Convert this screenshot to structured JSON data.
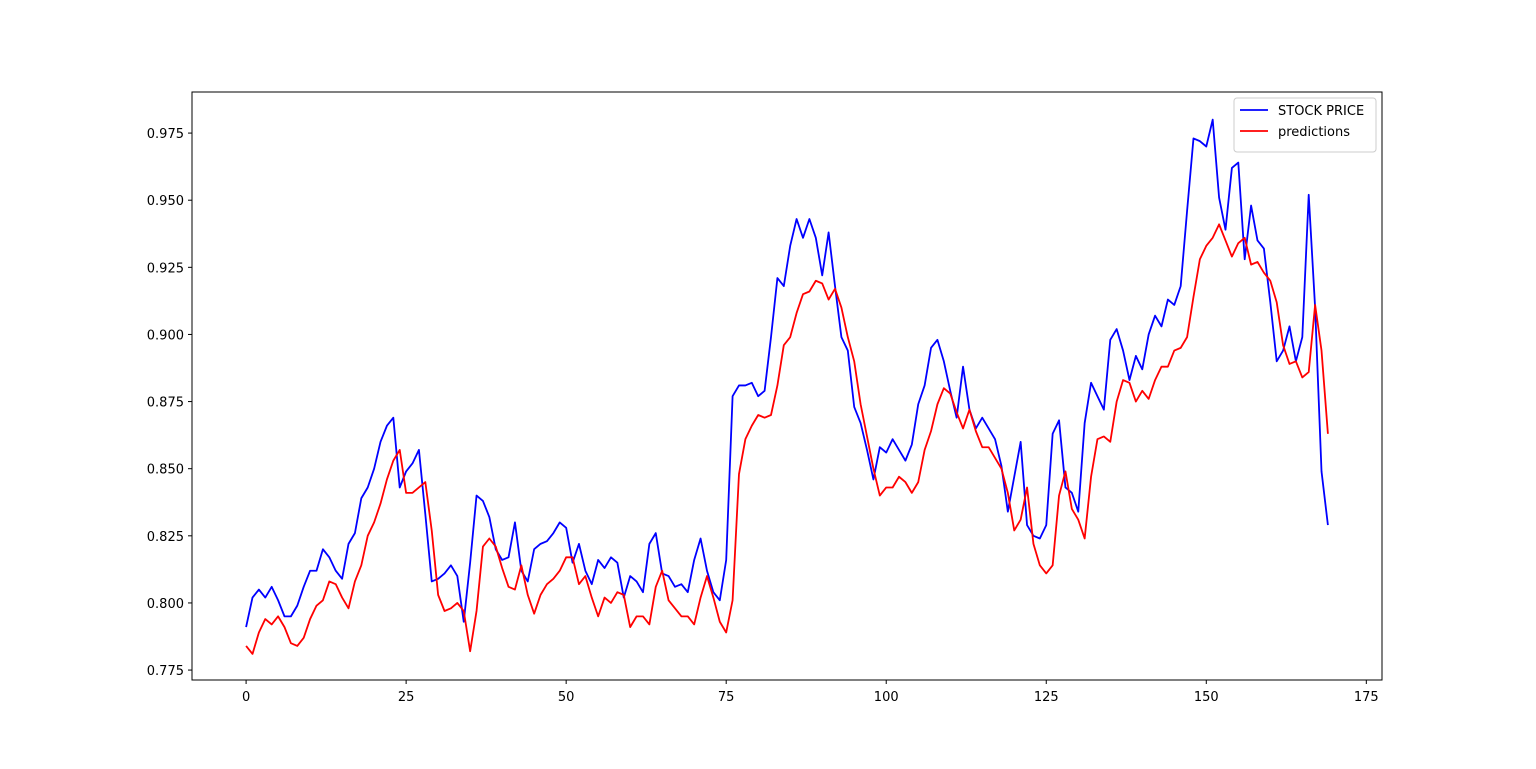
{
  "chart_data": {
    "type": "line",
    "x": [
      0,
      1,
      2,
      3,
      4,
      5,
      6,
      7,
      8,
      9,
      10,
      11,
      12,
      13,
      14,
      15,
      16,
      17,
      18,
      19,
      20,
      21,
      22,
      23,
      24,
      25,
      26,
      27,
      28,
      29,
      30,
      31,
      32,
      33,
      34,
      35,
      36,
      37,
      38,
      39,
      40,
      41,
      42,
      43,
      44,
      45,
      46,
      47,
      48,
      49,
      50,
      51,
      52,
      53,
      54,
      55,
      56,
      57,
      58,
      59,
      60,
      61,
      62,
      63,
      64,
      65,
      66,
      67,
      68,
      69,
      70,
      71,
      72,
      73,
      74,
      75,
      76,
      77,
      78,
      79,
      80,
      81,
      82,
      83,
      84,
      85,
      86,
      87,
      88,
      89,
      90,
      91,
      92,
      93,
      94,
      95,
      96,
      97,
      98,
      99,
      100,
      101,
      102,
      103,
      104,
      105,
      106,
      107,
      108,
      109,
      110,
      111,
      112,
      113,
      114,
      115,
      116,
      117,
      118,
      119,
      120,
      121,
      122,
      123,
      124,
      125,
      126,
      127,
      128,
      129,
      130,
      131,
      132,
      133,
      134,
      135,
      136,
      137,
      138,
      139,
      140,
      141,
      142,
      143,
      144,
      145,
      146,
      147,
      148,
      149,
      150,
      151,
      152,
      153,
      154,
      155,
      156,
      157,
      158,
      159,
      160,
      161,
      162,
      163,
      164,
      165,
      166,
      167,
      168,
      169
    ],
    "series": [
      {
        "name": "STOCK PRICE",
        "color": "#0000ff",
        "values": [
          0.791,
          0.802,
          0.805,
          0.802,
          0.806,
          0.801,
          0.795,
          0.795,
          0.799,
          0.806,
          0.812,
          0.812,
          0.82,
          0.817,
          0.812,
          0.809,
          0.822,
          0.826,
          0.839,
          0.843,
          0.85,
          0.86,
          0.866,
          0.869,
          0.843,
          0.849,
          0.852,
          0.857,
          0.833,
          0.808,
          0.809,
          0.811,
          0.814,
          0.81,
          0.793,
          0.815,
          0.84,
          0.838,
          0.832,
          0.82,
          0.816,
          0.817,
          0.83,
          0.812,
          0.808,
          0.82,
          0.822,
          0.823,
          0.826,
          0.83,
          0.828,
          0.815,
          0.822,
          0.812,
          0.807,
          0.816,
          0.813,
          0.817,
          0.815,
          0.802,
          0.81,
          0.808,
          0.804,
          0.822,
          0.826,
          0.811,
          0.81,
          0.806,
          0.807,
          0.804,
          0.816,
          0.824,
          0.812,
          0.804,
          0.801,
          0.816,
          0.877,
          0.881,
          0.881,
          0.882,
          0.877,
          0.879,
          0.899,
          0.921,
          0.918,
          0.933,
          0.943,
          0.936,
          0.943,
          0.936,
          0.922,
          0.938,
          0.918,
          0.899,
          0.894,
          0.873,
          0.867,
          0.857,
          0.846,
          0.858,
          0.856,
          0.861,
          0.857,
          0.853,
          0.859,
          0.874,
          0.881,
          0.895,
          0.898,
          0.89,
          0.879,
          0.869,
          0.888,
          0.872,
          0.865,
          0.869,
          0.865,
          0.861,
          0.851,
          0.834,
          0.847,
          0.86,
          0.829,
          0.825,
          0.824,
          0.829,
          0.863,
          0.868,
          0.843,
          0.841,
          0.834,
          0.867,
          0.882,
          0.877,
          0.872,
          0.898,
          0.902,
          0.894,
          0.883,
          0.892,
          0.887,
          0.9,
          0.907,
          0.903,
          0.913,
          0.911,
          0.918,
          0.946,
          0.973,
          0.972,
          0.97,
          0.98,
          0.951,
          0.939,
          0.962,
          0.964,
          0.928,
          0.948,
          0.935,
          0.932,
          0.912,
          0.89,
          0.894,
          0.903,
          0.89,
          0.899,
          0.952,
          0.91,
          0.849,
          0.829
        ]
      },
      {
        "name": "predictions",
        "color": "#ff0000",
        "values": [
          0.784,
          0.781,
          0.789,
          0.794,
          0.792,
          0.795,
          0.791,
          0.785,
          0.784,
          0.787,
          0.794,
          0.799,
          0.801,
          0.808,
          0.807,
          0.802,
          0.798,
          0.808,
          0.814,
          0.825,
          0.83,
          0.837,
          0.846,
          0.853,
          0.857,
          0.841,
          0.841,
          0.843,
          0.845,
          0.827,
          0.803,
          0.797,
          0.798,
          0.8,
          0.797,
          0.782,
          0.797,
          0.821,
          0.824,
          0.821,
          0.813,
          0.806,
          0.805,
          0.814,
          0.803,
          0.796,
          0.803,
          0.807,
          0.809,
          0.812,
          0.817,
          0.817,
          0.807,
          0.81,
          0.802,
          0.795,
          0.802,
          0.8,
          0.804,
          0.803,
          0.791,
          0.795,
          0.795,
          0.792,
          0.806,
          0.812,
          0.801,
          0.798,
          0.795,
          0.795,
          0.792,
          0.802,
          0.81,
          0.802,
          0.793,
          0.789,
          0.801,
          0.848,
          0.861,
          0.866,
          0.87,
          0.869,
          0.87,
          0.881,
          0.896,
          0.899,
          0.908,
          0.915,
          0.916,
          0.92,
          0.919,
          0.913,
          0.917,
          0.91,
          0.899,
          0.89,
          0.874,
          0.862,
          0.85,
          0.84,
          0.843,
          0.843,
          0.847,
          0.845,
          0.841,
          0.845,
          0.857,
          0.864,
          0.874,
          0.88,
          0.878,
          0.871,
          0.865,
          0.872,
          0.864,
          0.858,
          0.858,
          0.854,
          0.85,
          0.841,
          0.827,
          0.831,
          0.843,
          0.822,
          0.814,
          0.811,
          0.814,
          0.84,
          0.849,
          0.835,
          0.831,
          0.824,
          0.847,
          0.861,
          0.862,
          0.86,
          0.875,
          0.883,
          0.882,
          0.875,
          0.879,
          0.876,
          0.883,
          0.888,
          0.888,
          0.894,
          0.895,
          0.899,
          0.914,
          0.928,
          0.933,
          0.936,
          0.941,
          0.935,
          0.929,
          0.934,
          0.936,
          0.926,
          0.927,
          0.923,
          0.92,
          0.912,
          0.896,
          0.889,
          0.89,
          0.884,
          0.886,
          0.911,
          0.894,
          0.863
        ]
      }
    ],
    "xlim": [
      -8.45,
      177.45
    ],
    "xticks": [
      0,
      25,
      50,
      75,
      100,
      125,
      150,
      175
    ],
    "ylim": [
      0.7713,
      0.9903
    ],
    "yticks": [
      0.775,
      {
        "value": 0.8,
        "label": "0.800"
      },
      0.825,
      {
        "value": 0.85,
        "label": "0.850"
      },
      0.875,
      {
        "value": 0.9,
        "label": "0.900"
      },
      0.925,
      {
        "value": 0.95,
        "label": "0.950"
      },
      0.975
    ],
    "grid": false,
    "legend": "upper right"
  }
}
